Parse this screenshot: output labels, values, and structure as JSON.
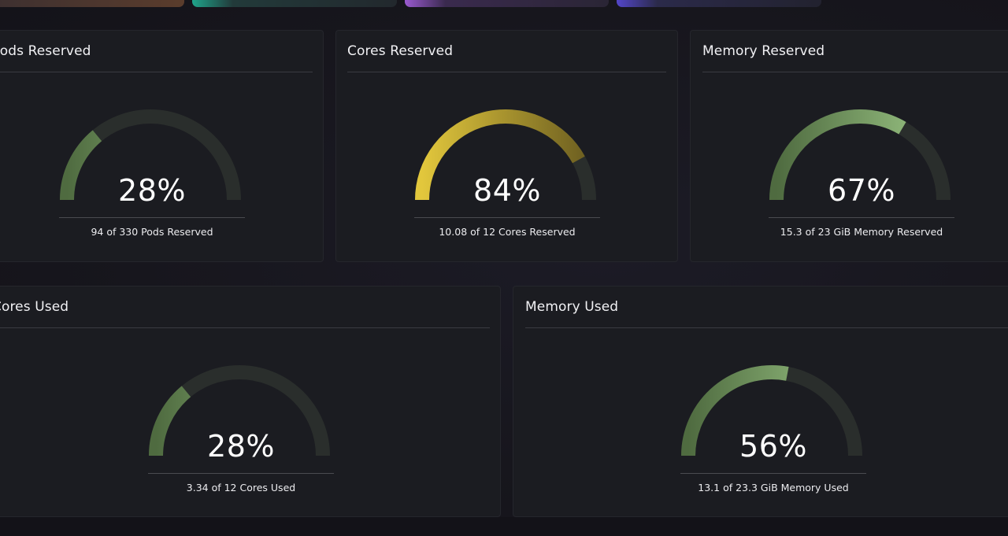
{
  "colors": {
    "background": "#17161d",
    "card": "#1b1c21",
    "track": "#2a2e2c",
    "green_start": "#4f6b40",
    "green_end": "#9dc887",
    "yellow_start": "#e2c73c",
    "yellow_end": "#6b5d20",
    "strip_brown": "#5a3c2c",
    "strip_teal": "#1f6b5c",
    "strip_purple": "#4b2a6a",
    "strip_indigo": "#2e2a6b"
  },
  "cards": {
    "pods_reserved": {
      "title": "Pods Reserved",
      "percent": 28,
      "value_text": "28%",
      "caption": "94 of 330 Pods Reserved"
    },
    "cores_reserved": {
      "title": "Cores Reserved",
      "percent": 84,
      "value_text": "84%",
      "caption": "10.08 of 12 Cores Reserved"
    },
    "memory_reserved": {
      "title": "Memory Reserved",
      "percent": 67,
      "value_text": "67%",
      "caption": "15.3 of 23 GiB Memory Reserved"
    },
    "cores_used": {
      "title": "Cores Used",
      "percent": 28,
      "value_text": "28%",
      "caption": "3.34 of 12 Cores Used"
    },
    "memory_used": {
      "title": "Memory Used",
      "percent": 56,
      "value_text": "56%",
      "caption": "13.1 of 23.3 GiB Memory Used"
    }
  }
}
